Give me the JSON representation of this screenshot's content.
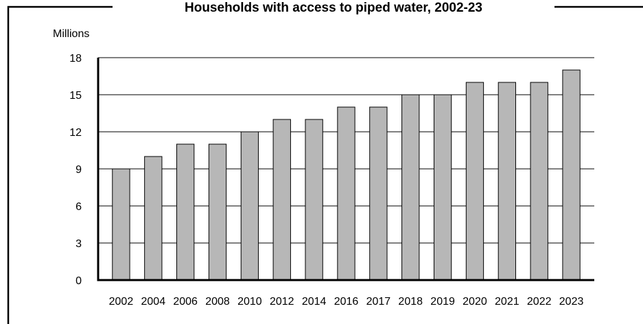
{
  "chart_data": {
    "type": "bar",
    "title": "Households with access to piped water, 2002-23",
    "ylabel": "Millions",
    "xlabel": "",
    "categories": [
      "2002",
      "2004",
      "2006",
      "2008",
      "2010",
      "2012",
      "2014",
      "2016",
      "2017",
      "2018",
      "2019",
      "2020",
      "2021",
      "2022",
      "2023"
    ],
    "values": [
      9,
      10,
      11,
      11,
      12,
      13,
      13,
      14,
      14,
      15,
      15,
      16,
      16,
      16,
      17
    ],
    "ylim": [
      0,
      18
    ],
    "yticks": [
      0,
      3,
      6,
      9,
      12,
      15,
      18
    ],
    "grid": true,
    "bar_color": "#b7b7b7",
    "bar_edge_color": "#000000"
  }
}
